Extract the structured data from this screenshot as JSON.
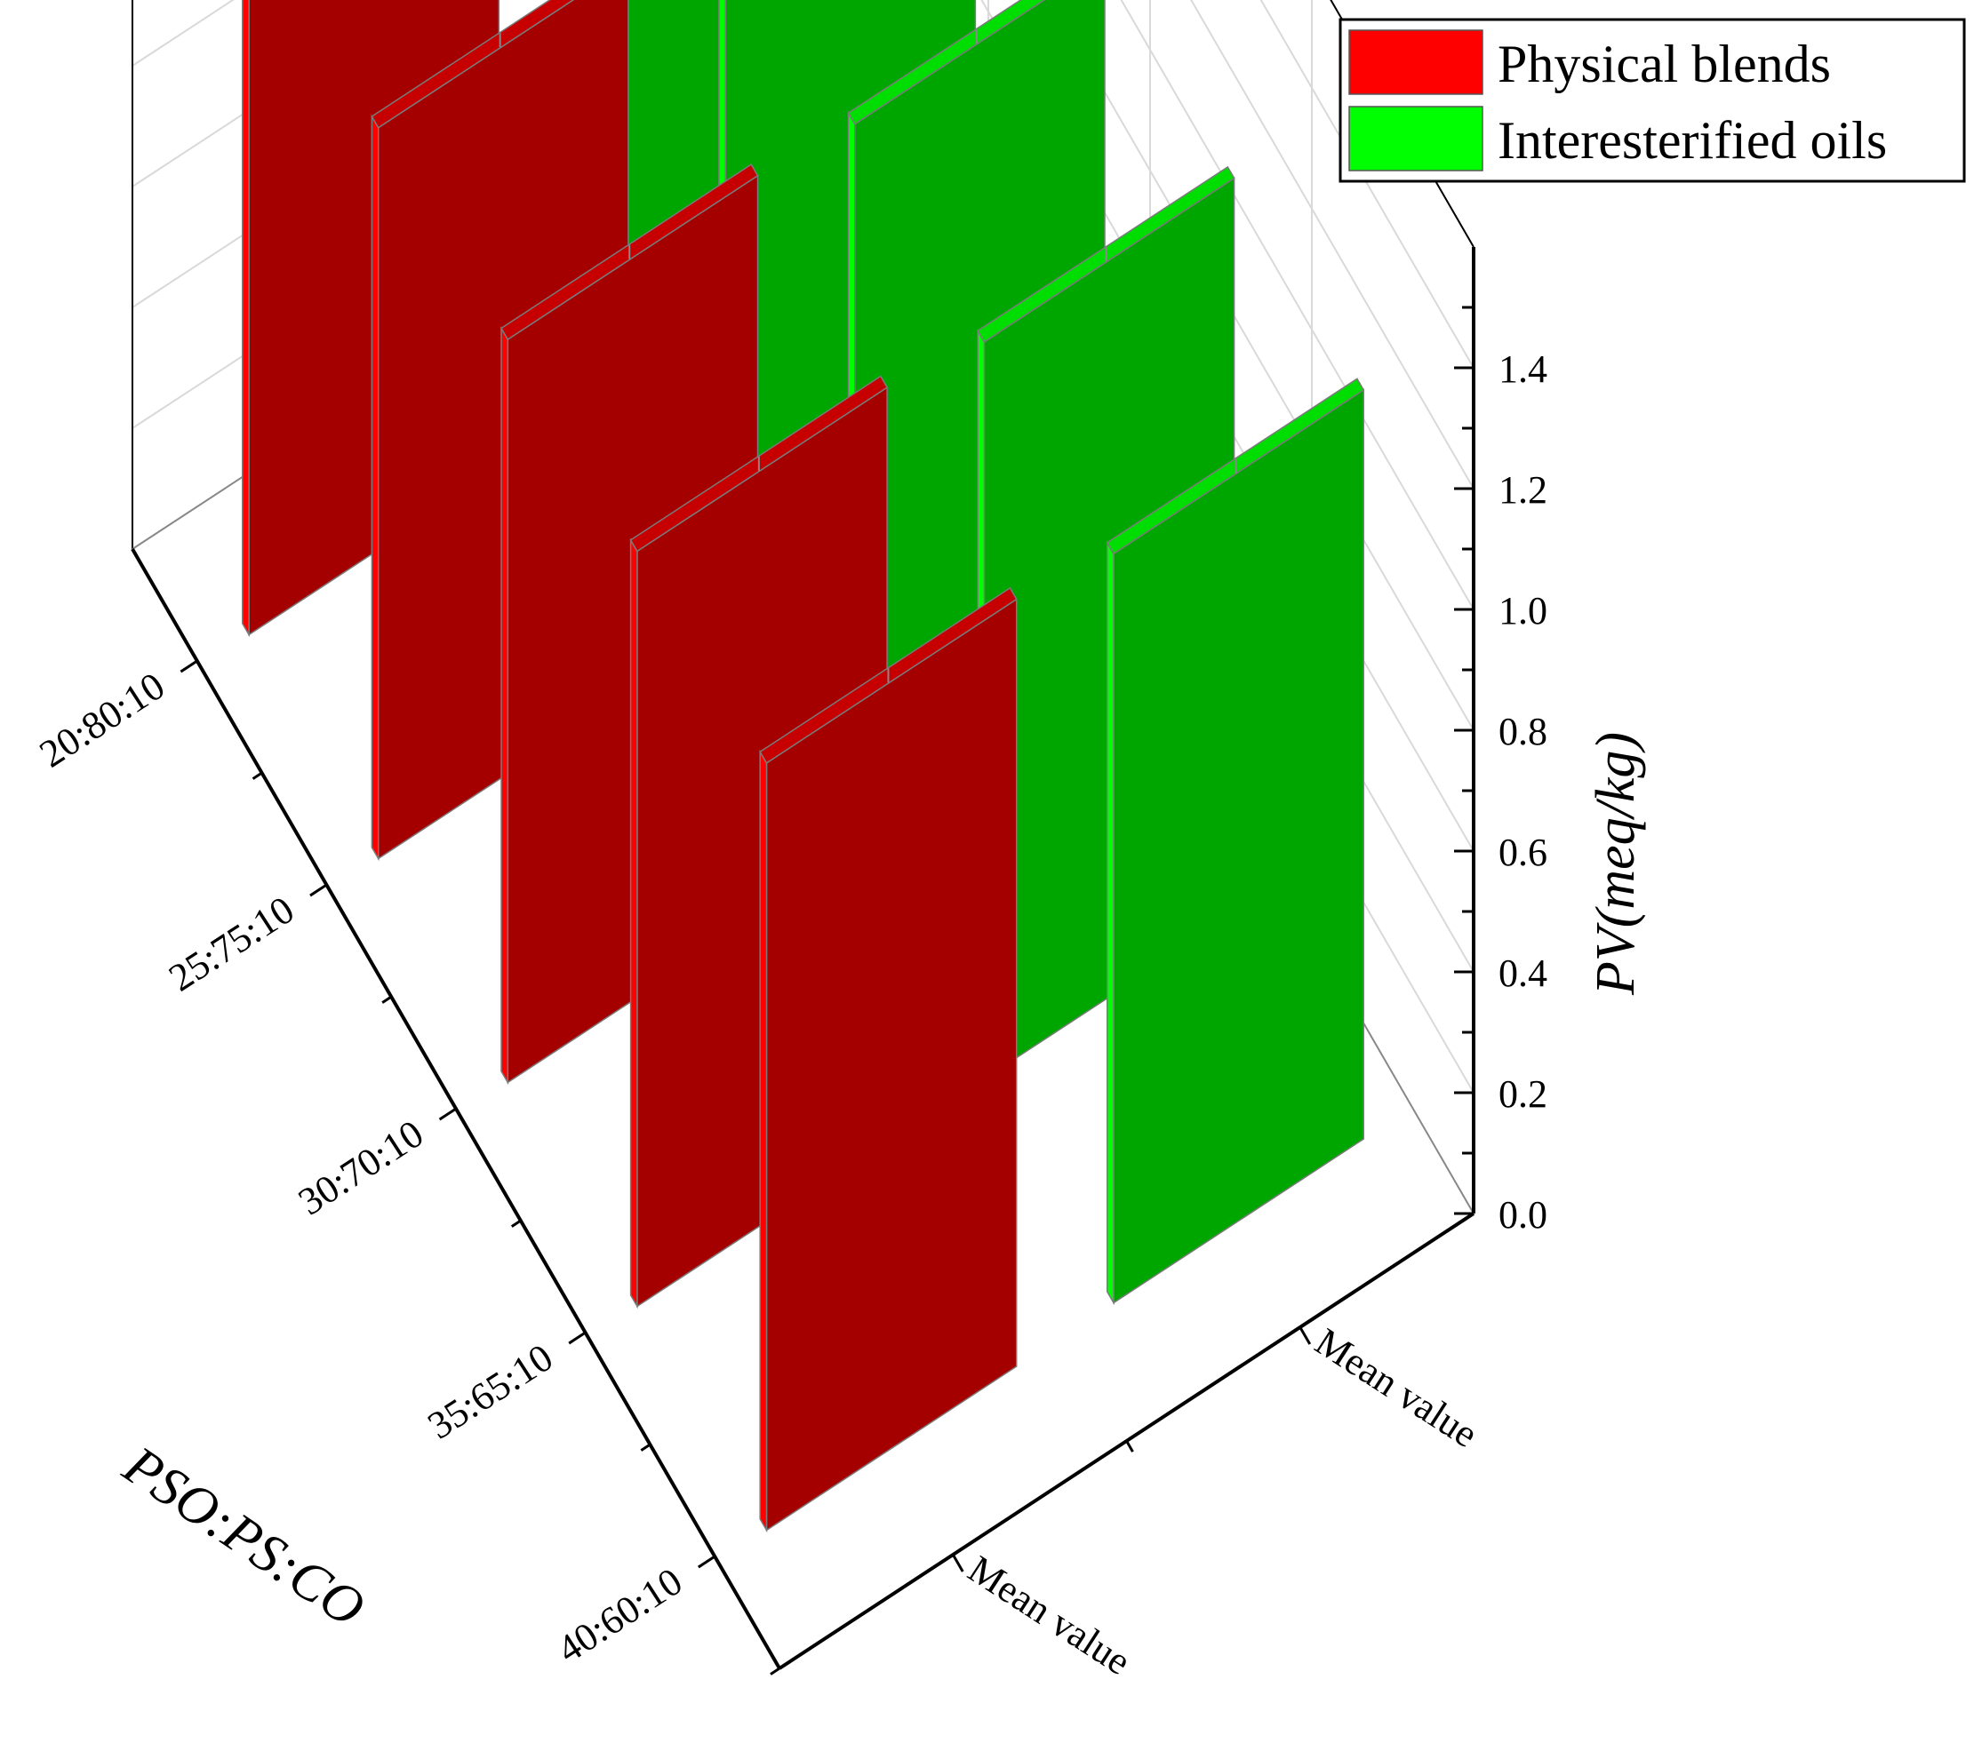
{
  "chart_data": {
    "type": "bar",
    "subtype": "3d-bar",
    "categories": [
      "20:80:10",
      "25:75:10",
      "30:70:10",
      "35:65:10",
      "40:60:10"
    ],
    "series": [
      {
        "name": "Physical blends",
        "color": "#ff0000",
        "values": [
          1.2,
          1.21,
          1.23,
          1.25,
          1.27
        ]
      },
      {
        "name": "Interesterified oils",
        "color": "#00ff00",
        "values": [
          1.18,
          1.2,
          1.21,
          1.22,
          1.24
        ]
      }
    ],
    "depth_labels": [
      "Mean value",
      "Mean value"
    ],
    "xlabel": "PSO:PS:CO",
    "zlabel": "PV(meq/kg)",
    "zlim": [
      0,
      1.6
    ],
    "zticks": [
      "0.0",
      "0.2",
      "0.4",
      "0.6",
      "0.8",
      "1.0",
      "1.2",
      "1.4"
    ],
    "zticks_values": [
      0,
      0.2,
      0.4,
      0.6,
      0.8,
      1.0,
      1.2,
      1.4
    ],
    "grid": true,
    "legend": "top-right"
  }
}
